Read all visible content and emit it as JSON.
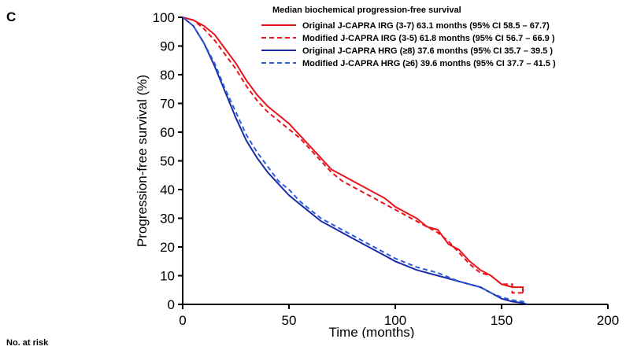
{
  "panel_label": "C",
  "risk_table_label": "No. at risk",
  "legend_title": "Median biochemical progression-free survival",
  "chart_data": {
    "type": "line",
    "xlabel": "Time (months)",
    "ylabel": "Progression-free survival (%)",
    "xlim": [
      0,
      200
    ],
    "ylim": [
      0,
      100
    ],
    "xticks": [
      0,
      50,
      100,
      150,
      200
    ],
    "yticks": [
      0,
      10,
      20,
      30,
      40,
      50,
      60,
      70,
      80,
      90,
      100
    ],
    "grid": false,
    "legend_position": "top-right",
    "series": [
      {
        "name": "Original J-CAPRA IRG (3-7) 63.1 months (95% CI 58.5 – 67.7)",
        "color": "#e8141b",
        "dash": "solid",
        "points": [
          [
            0,
            100
          ],
          [
            5,
            99
          ],
          [
            10,
            97
          ],
          [
            15,
            94
          ],
          [
            20,
            89
          ],
          [
            25,
            84
          ],
          [
            30,
            78
          ],
          [
            35,
            73
          ],
          [
            40,
            69
          ],
          [
            45,
            66
          ],
          [
            50,
            63
          ],
          [
            55,
            59
          ],
          [
            60,
            55
          ],
          [
            65,
            51
          ],
          [
            70,
            47
          ],
          [
            75,
            45
          ],
          [
            80,
            43
          ],
          [
            85,
            41
          ],
          [
            90,
            39
          ],
          [
            95,
            37
          ],
          [
            100,
            34
          ],
          [
            105,
            32
          ],
          [
            110,
            30
          ],
          [
            115,
            27
          ],
          [
            120,
            26
          ],
          [
            125,
            21
          ],
          [
            130,
            19
          ],
          [
            135,
            15
          ],
          [
            140,
            12
          ],
          [
            145,
            10
          ],
          [
            150,
            7
          ],
          [
            155,
            6
          ],
          [
            160,
            6
          ],
          [
            160,
            4
          ]
        ]
      },
      {
        "name": "Modified J-CAPRA IRG (3-5) 61.8 months (95% CI 56.7 – 66.9 )",
        "color": "#e8141b",
        "dash": "dashed",
        "points": [
          [
            0,
            100
          ],
          [
            5,
            99
          ],
          [
            10,
            96
          ],
          [
            15,
            92
          ],
          [
            20,
            87
          ],
          [
            25,
            82
          ],
          [
            30,
            76
          ],
          [
            35,
            71
          ],
          [
            40,
            67
          ],
          [
            45,
            64
          ],
          [
            50,
            61
          ],
          [
            55,
            58
          ],
          [
            60,
            54
          ],
          [
            65,
            50
          ],
          [
            70,
            46
          ],
          [
            75,
            43
          ],
          [
            80,
            41
          ],
          [
            85,
            39
          ],
          [
            90,
            37
          ],
          [
            95,
            35
          ],
          [
            100,
            33
          ],
          [
            105,
            31
          ],
          [
            110,
            29
          ],
          [
            115,
            27
          ],
          [
            120,
            25
          ],
          [
            125,
            22
          ],
          [
            130,
            18
          ],
          [
            135,
            14
          ],
          [
            140,
            11
          ],
          [
            145,
            10
          ],
          [
            150,
            7
          ],
          [
            155,
            7
          ],
          [
            155,
            4
          ],
          [
            160,
            4
          ]
        ]
      },
      {
        "name": "Original J-CAPRA HRG  (≥8) 37.6 months (95% CI 35.7 – 39.5 )",
        "color": "#1a2aa8",
        "dash": "solid",
        "points": [
          [
            0,
            100
          ],
          [
            5,
            97
          ],
          [
            10,
            91
          ],
          [
            15,
            83
          ],
          [
            20,
            74
          ],
          [
            25,
            65
          ],
          [
            30,
            57
          ],
          [
            35,
            51
          ],
          [
            40,
            46
          ],
          [
            45,
            42
          ],
          [
            50,
            38
          ],
          [
            55,
            35
          ],
          [
            60,
            32
          ],
          [
            65,
            29
          ],
          [
            70,
            27
          ],
          [
            75,
            25
          ],
          [
            80,
            23
          ],
          [
            85,
            21
          ],
          [
            90,
            19
          ],
          [
            95,
            17
          ],
          [
            100,
            15
          ],
          [
            110,
            12
          ],
          [
            120,
            10
          ],
          [
            130,
            8
          ],
          [
            140,
            6
          ],
          [
            145,
            4
          ],
          [
            150,
            2
          ],
          [
            155,
            1
          ],
          [
            160,
            0.5
          ],
          [
            162,
            0
          ]
        ]
      },
      {
        "name": "Modified J-CAPRA HRG (≥6) 39.6 months (95% CI 37.7 – 41.5 )",
        "color": "#2b5fd9",
        "dash": "dashed",
        "points": [
          [
            0,
            100
          ],
          [
            5,
            97
          ],
          [
            10,
            91
          ],
          [
            15,
            84
          ],
          [
            20,
            75
          ],
          [
            25,
            67
          ],
          [
            30,
            59
          ],
          [
            35,
            53
          ],
          [
            40,
            48
          ],
          [
            45,
            43
          ],
          [
            50,
            40
          ],
          [
            55,
            36
          ],
          [
            60,
            33
          ],
          [
            65,
            30
          ],
          [
            70,
            28
          ],
          [
            75,
            26
          ],
          [
            80,
            24
          ],
          [
            85,
            22
          ],
          [
            90,
            20
          ],
          [
            95,
            18
          ],
          [
            100,
            16
          ],
          [
            110,
            13
          ],
          [
            120,
            11
          ],
          [
            130,
            8
          ],
          [
            140,
            6
          ],
          [
            145,
            4
          ],
          [
            150,
            2.5
          ],
          [
            155,
            1.5
          ],
          [
            160,
            1
          ],
          [
            162,
            0.5
          ]
        ]
      }
    ]
  }
}
